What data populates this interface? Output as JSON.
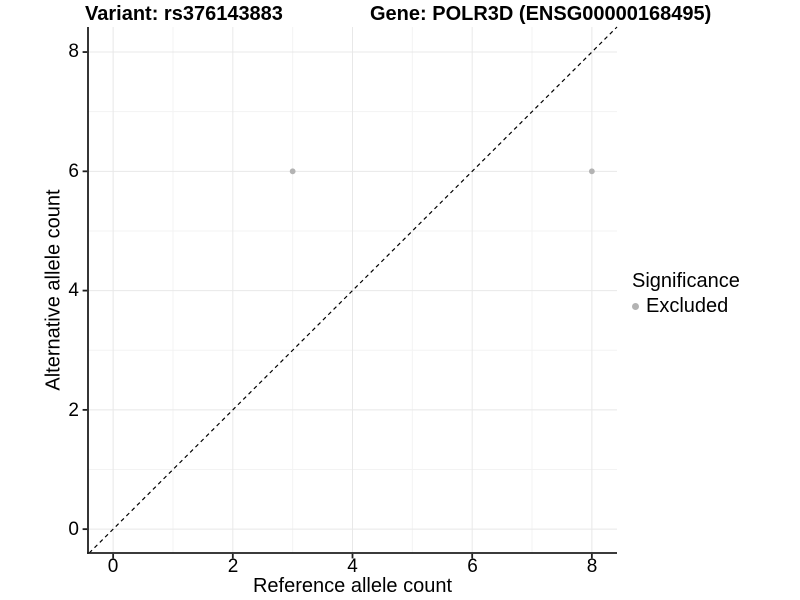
{
  "titles": {
    "variant": "Variant: rs376143883",
    "gene": "Gene: POLR3D (ENSG00000168495)"
  },
  "legend": {
    "title": "Significance",
    "items": [
      {
        "label": "Excluded",
        "color": "#b3b3b3"
      }
    ]
  },
  "chart_data": {
    "type": "scatter",
    "title": "Variant: rs376143883    Gene: POLR3D (ENSG00000168495)",
    "xlabel": "Reference allele count",
    "ylabel": "Alternative allele count",
    "xlim": [
      -0.42,
      8.42
    ],
    "ylim": [
      -0.4,
      8.42
    ],
    "xticks": [
      0,
      2,
      4,
      6,
      8
    ],
    "yticks": [
      0,
      2,
      4,
      6,
      8
    ],
    "x_minor_breaks": [
      1,
      3,
      5,
      7
    ],
    "y_minor_breaks": [
      1,
      3,
      5,
      7
    ],
    "grid": true,
    "legend_position": "right",
    "series": [
      {
        "name": "Excluded",
        "color": "#b3b3b3",
        "points": [
          {
            "x": 3,
            "y": 6
          },
          {
            "x": 8,
            "y": 6
          }
        ]
      }
    ],
    "reference_line": {
      "type": "identity_y_equals_x",
      "style": "dashed",
      "color": "#000000"
    },
    "colors": {
      "grid_major": "#e8e8e8",
      "grid_minor": "#f3f3f3",
      "axis_line": "#1f1f1f",
      "point": "#b3b3b3"
    }
  }
}
